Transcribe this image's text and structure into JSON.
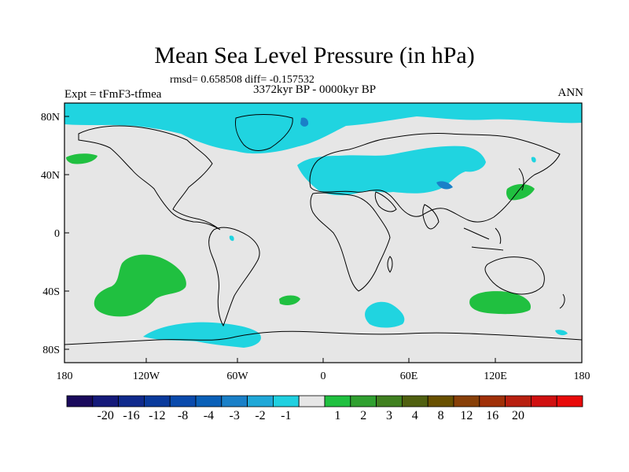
{
  "title": "Mean Sea Level Pressure (in hPa)",
  "stats": "rmsd= 0.658508 diff= -0.157532",
  "experiment": "Expt = tFmF3-tfmea",
  "period": "3372kyr BP - 0000kyr BP",
  "season": "ANN",
  "lat_labels": [
    "80N",
    "40N",
    "0",
    "40S",
    "80S"
  ],
  "lon_labels": [
    "180",
    "120W",
    "60W",
    "0",
    "60E",
    "120E",
    "180"
  ],
  "colorbar": {
    "colors": [
      "#1a0a5c",
      "#151a7a",
      "#102a8c",
      "#0a3a9c",
      "#0a4aac",
      "#0a60b8",
      "#1a80c8",
      "#20a8d8",
      "#20d0e0",
      "#e6e6e6",
      "#20c040",
      "#30a030",
      "#408020",
      "#506010",
      "#685000",
      "#884008",
      "#a03008",
      "#b82010",
      "#d01010",
      "#e80a0a"
    ],
    "labels": [
      "-20",
      "-16",
      "-12",
      "-8",
      "-4",
      "-3",
      "-2",
      "-1",
      "1",
      "2",
      "3",
      "4",
      "8",
      "12",
      "16",
      "20"
    ]
  },
  "regions": {
    "arctic": "negative anomaly -1 to -2",
    "eurasia": "negative anomaly -1 to -2",
    "south_pacific": "positive anomaly 1 to 2",
    "south_indian": "positive anomaly 1 to 2",
    "southern_ocean": "negative anomaly -1 to -2"
  }
}
